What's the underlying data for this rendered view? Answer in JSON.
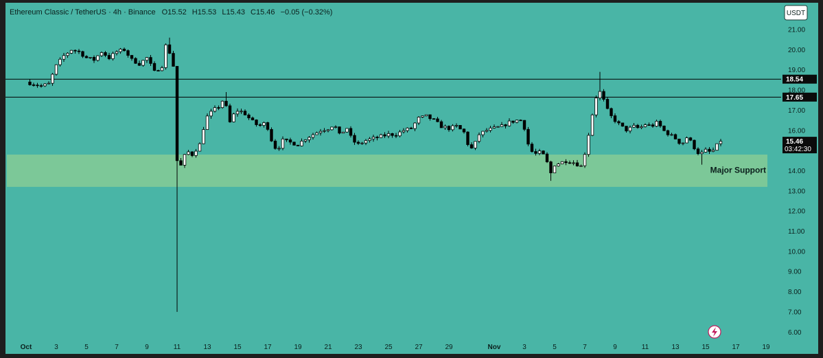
{
  "chart_data": {
    "type": "candlestick",
    "title": "Ethereum Classic / TetherUS · 4h · Binance",
    "ohlc_header": {
      "open": "O15.52",
      "high": "H15.53",
      "low": "L15.43",
      "close": "C15.46",
      "change": "−0.05 (−0.32%)"
    },
    "currency": "USDT",
    "y_ticks": [
      "21.00",
      "20.00",
      "19.00",
      "18.00",
      "17.00",
      "16.00",
      "15.00",
      "14.00",
      "13.00",
      "12.00",
      "11.00",
      "10.00",
      "9.00",
      "8.00",
      "7.00",
      "6.00"
    ],
    "ylim": [
      5.8,
      21.5
    ],
    "x_ticks": [
      {
        "label": "Oct",
        "bold": true
      },
      {
        "label": "3"
      },
      {
        "label": "5"
      },
      {
        "label": "7"
      },
      {
        "label": "9"
      },
      {
        "label": "11"
      },
      {
        "label": "13"
      },
      {
        "label": "15"
      },
      {
        "label": "17"
      },
      {
        "label": "19"
      },
      {
        "label": "21"
      },
      {
        "label": "23"
      },
      {
        "label": "25"
      },
      {
        "label": "27"
      },
      {
        "label": "29"
      },
      {
        "label": "Nov",
        "bold": true
      },
      {
        "label": "3"
      },
      {
        "label": "5"
      },
      {
        "label": "7"
      },
      {
        "label": "9"
      },
      {
        "label": "11"
      },
      {
        "label": "13"
      },
      {
        "label": "15"
      },
      {
        "label": "17"
      },
      {
        "label": "19"
      }
    ],
    "x_day_offsets": [
      0,
      2,
      4,
      6,
      8,
      10,
      12,
      14,
      16,
      18,
      20,
      22,
      24,
      26,
      28,
      31,
      33,
      35,
      37,
      39,
      41,
      43,
      45,
      47,
      49
    ],
    "resistance_lines": [
      {
        "value": 18.54,
        "label": "18.54"
      },
      {
        "value": 17.65,
        "label": "17.65"
      }
    ],
    "support_zone": {
      "low": 13.2,
      "high": 14.8,
      "label": "Major Support"
    },
    "last_price": {
      "value": 15.46,
      "label": "15.46",
      "countdown": "03:42:30"
    },
    "price_path": [
      [
        0,
        18.4
      ],
      [
        0.5,
        18.3
      ],
      [
        1,
        18.2
      ],
      [
        1.5,
        18.3
      ],
      [
        2,
        19.2
      ],
      [
        2.5,
        19.7
      ],
      [
        3,
        20.0
      ],
      [
        3.5,
        19.9
      ],
      [
        4,
        19.6
      ],
      [
        4.5,
        19.5
      ],
      [
        5,
        19.9
      ],
      [
        5.5,
        19.6
      ],
      [
        6,
        19.9
      ],
      [
        6.5,
        20.0
      ],
      [
        7,
        19.5
      ],
      [
        7.5,
        19.3
      ],
      [
        8,
        19.6
      ],
      [
        8.5,
        18.9
      ],
      [
        9,
        19.2
      ],
      [
        9.3,
        20.4
      ],
      [
        9.6,
        19.6
      ],
      [
        9.9,
        18.8
      ],
      [
        10,
        14.5
      ],
      [
        10.3,
        14.2
      ],
      [
        10.6,
        15.0
      ],
      [
        11,
        14.8
      ],
      [
        11.5,
        15.3
      ],
      [
        11.9,
        16.6
      ],
      [
        12.4,
        17.0
      ],
      [
        12.8,
        17.2
      ],
      [
        13.1,
        17.6
      ],
      [
        13.5,
        16.4
      ],
      [
        13.9,
        17.0
      ],
      [
        14.4,
        16.9
      ],
      [
        14.9,
        16.5
      ],
      [
        15.4,
        16.2
      ],
      [
        15.9,
        16.4
      ],
      [
        16.2,
        15.6
      ],
      [
        16.6,
        15.0
      ],
      [
        17,
        15.5
      ],
      [
        17.5,
        15.4
      ],
      [
        18,
        15.3
      ],
      [
        18.5,
        15.6
      ],
      [
        19,
        15.8
      ],
      [
        19.5,
        16.0
      ],
      [
        20,
        16.1
      ],
      [
        20.4,
        16.3
      ],
      [
        20.8,
        15.7
      ],
      [
        21.2,
        16.2
      ],
      [
        21.6,
        15.5
      ],
      [
        22,
        15.3
      ],
      [
        22.5,
        15.5
      ],
      [
        23,
        15.6
      ],
      [
        23.5,
        15.7
      ],
      [
        24,
        15.8
      ],
      [
        24.5,
        15.8
      ],
      [
        25,
        16.0
      ],
      [
        25.5,
        16.1
      ],
      [
        26,
        16.6
      ],
      [
        26.5,
        16.7
      ],
      [
        27,
        16.5
      ],
      [
        27.5,
        16.2
      ],
      [
        28,
        16.1
      ],
      [
        28.5,
        16.2
      ],
      [
        29,
        15.9
      ],
      [
        29.4,
        15.0
      ],
      [
        29.7,
        15.3
      ],
      [
        30,
        15.8
      ],
      [
        30.5,
        16.0
      ],
      [
        31,
        16.1
      ],
      [
        31.5,
        16.2
      ],
      [
        32,
        16.4
      ],
      [
        32.5,
        16.5
      ],
      [
        32.9,
        16.5
      ],
      [
        33.2,
        15.4
      ],
      [
        33.6,
        14.8
      ],
      [
        34,
        14.9
      ],
      [
        34.4,
        14.7
      ],
      [
        34.7,
        13.8
      ],
      [
        35,
        14.3
      ],
      [
        35.4,
        14.4
      ],
      [
        35.8,
        14.5
      ],
      [
        36.3,
        14.4
      ],
      [
        36.8,
        14.2
      ],
      [
        37.1,
        15.2
      ],
      [
        37.4,
        16.4
      ],
      [
        37.7,
        17.6
      ],
      [
        38,
        17.9
      ],
      [
        38.3,
        17.4
      ],
      [
        38.6,
        16.8
      ],
      [
        39,
        16.5
      ],
      [
        39.4,
        16.2
      ],
      [
        39.8,
        16.0
      ],
      [
        40.2,
        16.2
      ],
      [
        40.6,
        16.1
      ],
      [
        41,
        16.3
      ],
      [
        41.4,
        16.2
      ],
      [
        41.8,
        16.4
      ],
      [
        42.2,
        16.0
      ],
      [
        42.6,
        15.8
      ],
      [
        43,
        15.6
      ],
      [
        43.4,
        15.3
      ],
      [
        43.8,
        15.7
      ],
      [
        44.2,
        15.2
      ],
      [
        44.6,
        14.8
      ],
      [
        45,
        15.0
      ],
      [
        45.4,
        14.9
      ],
      [
        45.8,
        15.3
      ],
      [
        46.1,
        15.46
      ]
    ],
    "spikes": [
      [
        9.4,
        20.6
      ],
      [
        10.05,
        7.0
      ],
      [
        13.2,
        17.9
      ],
      [
        34.8,
        13.5
      ],
      [
        37.9,
        18.9
      ],
      [
        44.7,
        14.3
      ]
    ],
    "colors": {
      "background": "#49b5a6",
      "support_fill": "#7cc898",
      "candle_up": "#ffffff",
      "candle_down": "#000000",
      "line": "#000000"
    }
  },
  "watermark_icon": "lightning-icon"
}
